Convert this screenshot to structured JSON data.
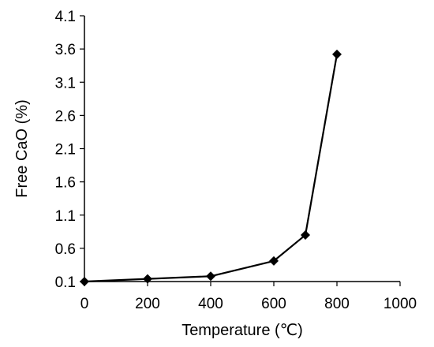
{
  "chart_data": {
    "type": "line",
    "xlabel": "Temperature (℃)",
    "ylabel": "Free CaO (%)",
    "xlim": [
      0,
      1000
    ],
    "ylim": [
      0.1,
      4.1
    ],
    "x_ticks": [
      "0",
      "200",
      "400",
      "600",
      "800",
      "1000"
    ],
    "y_ticks": [
      "0.1",
      "0.6",
      "1.1",
      "1.6",
      "2.1",
      "2.6",
      "3.1",
      "3.6",
      "4.1"
    ],
    "grid": false,
    "legend": "none",
    "marker": "diamond",
    "color": "#000000",
    "series": [
      {
        "x": [
          0,
          200,
          400,
          600,
          700,
          800
        ],
        "y": [
          0.1,
          0.14,
          0.18,
          0.41,
          0.8,
          3.52
        ]
      }
    ]
  }
}
